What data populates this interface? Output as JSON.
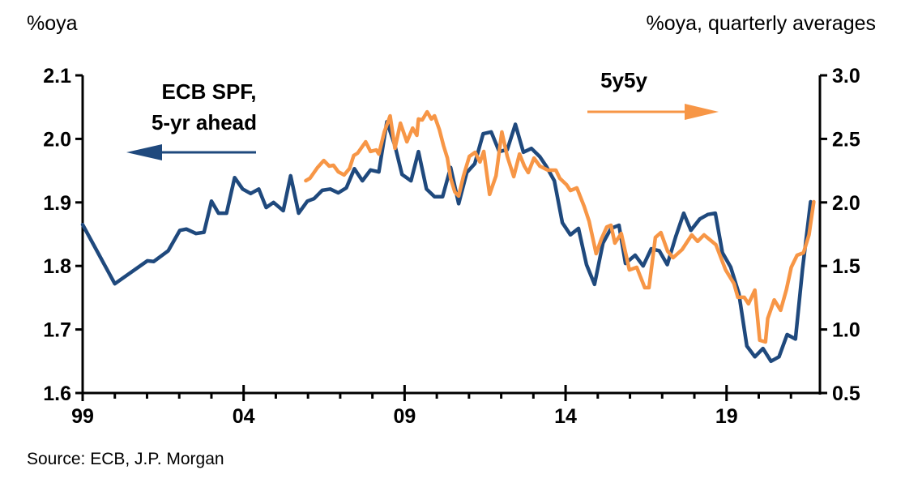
{
  "chart_data": {
    "type": "line",
    "title": "",
    "source": "Source: ECB, J.P. Morgan",
    "left_axis": {
      "label": "%oya",
      "ylim": [
        1.6,
        2.1
      ],
      "ticks": [
        1.6,
        1.7,
        1.8,
        1.9,
        2.0,
        2.1
      ],
      "tick_labels": [
        "1.6",
        "1.7",
        "1.8",
        "1.9",
        "2.0",
        "2.1"
      ]
    },
    "right_axis": {
      "label": "%oya, quarterly averages",
      "ylim": [
        0.5,
        3.0
      ],
      "ticks": [
        0.5,
        1.0,
        1.5,
        2.0,
        2.5,
        3.0
      ],
      "tick_labels": [
        "0.5",
        "1.0",
        "1.5",
        "2.0",
        "2.5",
        "3.0"
      ]
    },
    "x_axis": {
      "xlim": [
        1999,
        2021.9
      ],
      "major_ticks": [
        1999,
        2004,
        2009,
        2014,
        2019
      ],
      "tick_labels": [
        "99",
        "04",
        "09",
        "14",
        "19"
      ],
      "minor_ticks_every": 1
    },
    "grid": false,
    "annotations": [
      {
        "series": "ECB SPF, 5-yr ahead",
        "lines": [
          "ECB SPF,",
          "5-yr ahead"
        ],
        "arrow": "left"
      },
      {
        "series": "5y5y",
        "lines": [
          "5y5y"
        ],
        "arrow": "right"
      }
    ],
    "colors": {
      "spf": "#1f497d",
      "fivey5y": "#f79646"
    },
    "series": [
      {
        "name": "ECB SPF, 5-yr ahead",
        "axis": "left",
        "color": "#1f497d",
        "x": [
          1999.0,
          2000.0,
          2001.01,
          2001.21,
          2001.66,
          2002.02,
          2002.22,
          2002.52,
          2002.77,
          2003.0,
          2003.22,
          2003.47,
          2003.72,
          2003.97,
          2004.22,
          2004.47,
          2004.7,
          2004.93,
          2005.23,
          2005.46,
          2005.71,
          2005.98,
          2006.19,
          2006.44,
          2006.69,
          2006.94,
          2007.19,
          2007.44,
          2007.69,
          2007.94,
          2008.2,
          2008.45,
          2008.7,
          2008.92,
          2009.2,
          2009.43,
          2009.68,
          2009.93,
          2010.18,
          2010.43,
          2010.68,
          2010.93,
          2011.18,
          2011.44,
          2011.69,
          2011.94,
          2012.19,
          2012.44,
          2012.69,
          2012.94,
          2013.2,
          2013.4,
          2013.65,
          2013.9,
          2014.15,
          2014.4,
          2014.65,
          2014.9,
          2015.16,
          2015.41,
          2015.66,
          2015.86,
          2016.16,
          2016.41,
          2016.66,
          2016.91,
          2017.16,
          2017.42,
          2017.67,
          2017.89,
          2018.17,
          2018.42,
          2018.65,
          2018.87,
          2019.13,
          2019.38,
          2019.63,
          2019.88,
          2020.13,
          2020.38,
          2020.63,
          2020.88,
          2021.14,
          2021.36,
          2021.61
        ],
        "y": [
          1.865,
          1.772,
          1.808,
          1.807,
          1.824,
          1.856,
          1.858,
          1.851,
          1.853,
          1.902,
          1.883,
          1.883,
          1.939,
          1.921,
          1.914,
          1.921,
          1.892,
          1.9,
          1.887,
          1.942,
          1.883,
          1.902,
          1.906,
          1.919,
          1.921,
          1.915,
          1.923,
          1.953,
          1.934,
          1.951,
          1.948,
          2.027,
          1.989,
          1.944,
          1.934,
          1.98,
          1.921,
          1.909,
          1.909,
          1.955,
          1.898,
          1.947,
          1.961,
          2.008,
          2.011,
          1.98,
          1.983,
          2.023,
          1.979,
          1.985,
          1.972,
          1.957,
          1.934,
          1.868,
          1.849,
          1.859,
          1.802,
          1.771,
          1.836,
          1.859,
          1.864,
          1.804,
          1.817,
          1.8,
          1.827,
          1.824,
          1.802,
          1.846,
          1.883,
          1.856,
          1.874,
          1.881,
          1.883,
          1.821,
          1.798,
          1.757,
          1.674,
          1.657,
          1.67,
          1.65,
          1.657,
          1.692,
          1.685,
          1.795,
          1.901
        ]
      },
      {
        "name": "5y5y",
        "axis": "right",
        "color": "#f79646",
        "x": [
          2005.93,
          2006.06,
          2006.29,
          2006.49,
          2006.66,
          2006.79,
          2006.94,
          2007.12,
          2007.29,
          2007.42,
          2007.54,
          2007.79,
          2007.94,
          2008.12,
          2008.2,
          2008.37,
          2008.55,
          2008.7,
          2008.87,
          2009.07,
          2009.25,
          2009.38,
          2009.43,
          2009.55,
          2009.7,
          2009.83,
          2009.93,
          2010.08,
          2010.21,
          2010.33,
          2010.43,
          2010.56,
          2010.68,
          2010.83,
          2011.01,
          2011.19,
          2011.34,
          2011.46,
          2011.64,
          2011.84,
          2012.02,
          2012.19,
          2012.39,
          2012.57,
          2012.72,
          2012.84,
          2013.02,
          2013.2,
          2013.45,
          2013.7,
          2013.82,
          2014.03,
          2014.15,
          2014.35,
          2014.58,
          2014.73,
          2014.95,
          2015.11,
          2015.28,
          2015.41,
          2015.53,
          2015.73,
          2015.98,
          2016.21,
          2016.46,
          2016.59,
          2016.79,
          2016.96,
          2017.17,
          2017.34,
          2017.62,
          2017.92,
          2018.1,
          2018.3,
          2018.67,
          2018.97,
          2019.23,
          2019.35,
          2019.55,
          2019.68,
          2019.88,
          2020.03,
          2020.21,
          2020.28,
          2020.48,
          2020.68,
          2020.86,
          2021.01,
          2021.19,
          2021.39,
          2021.56,
          2021.71
        ],
        "y": [
          2.171,
          2.19,
          2.273,
          2.33,
          2.286,
          2.292,
          2.241,
          2.216,
          2.267,
          2.369,
          2.388,
          2.477,
          2.401,
          2.413,
          2.381,
          2.554,
          2.681,
          2.426,
          2.624,
          2.477,
          2.585,
          2.528,
          2.656,
          2.649,
          2.713,
          2.656,
          2.681,
          2.573,
          2.445,
          2.349,
          2.19,
          2.082,
          2.05,
          2.209,
          2.362,
          2.394,
          2.318,
          2.401,
          2.063,
          2.209,
          2.554,
          2.362,
          2.203,
          2.381,
          2.286,
          2.235,
          2.349,
          2.286,
          2.254,
          2.254,
          2.19,
          2.139,
          2.094,
          2.114,
          1.967,
          1.852,
          1.597,
          1.712,
          1.807,
          1.82,
          1.68,
          1.756,
          1.469,
          1.489,
          1.329,
          1.329,
          1.724,
          1.763,
          1.616,
          1.565,
          1.629,
          1.744,
          1.693,
          1.744,
          1.667,
          1.469,
          1.361,
          1.253,
          1.253,
          1.202,
          1.31,
          0.915,
          0.902,
          1.087,
          1.233,
          1.151,
          1.316,
          1.489,
          1.584,
          1.603,
          1.744,
          2.005
        ]
      }
    ]
  }
}
